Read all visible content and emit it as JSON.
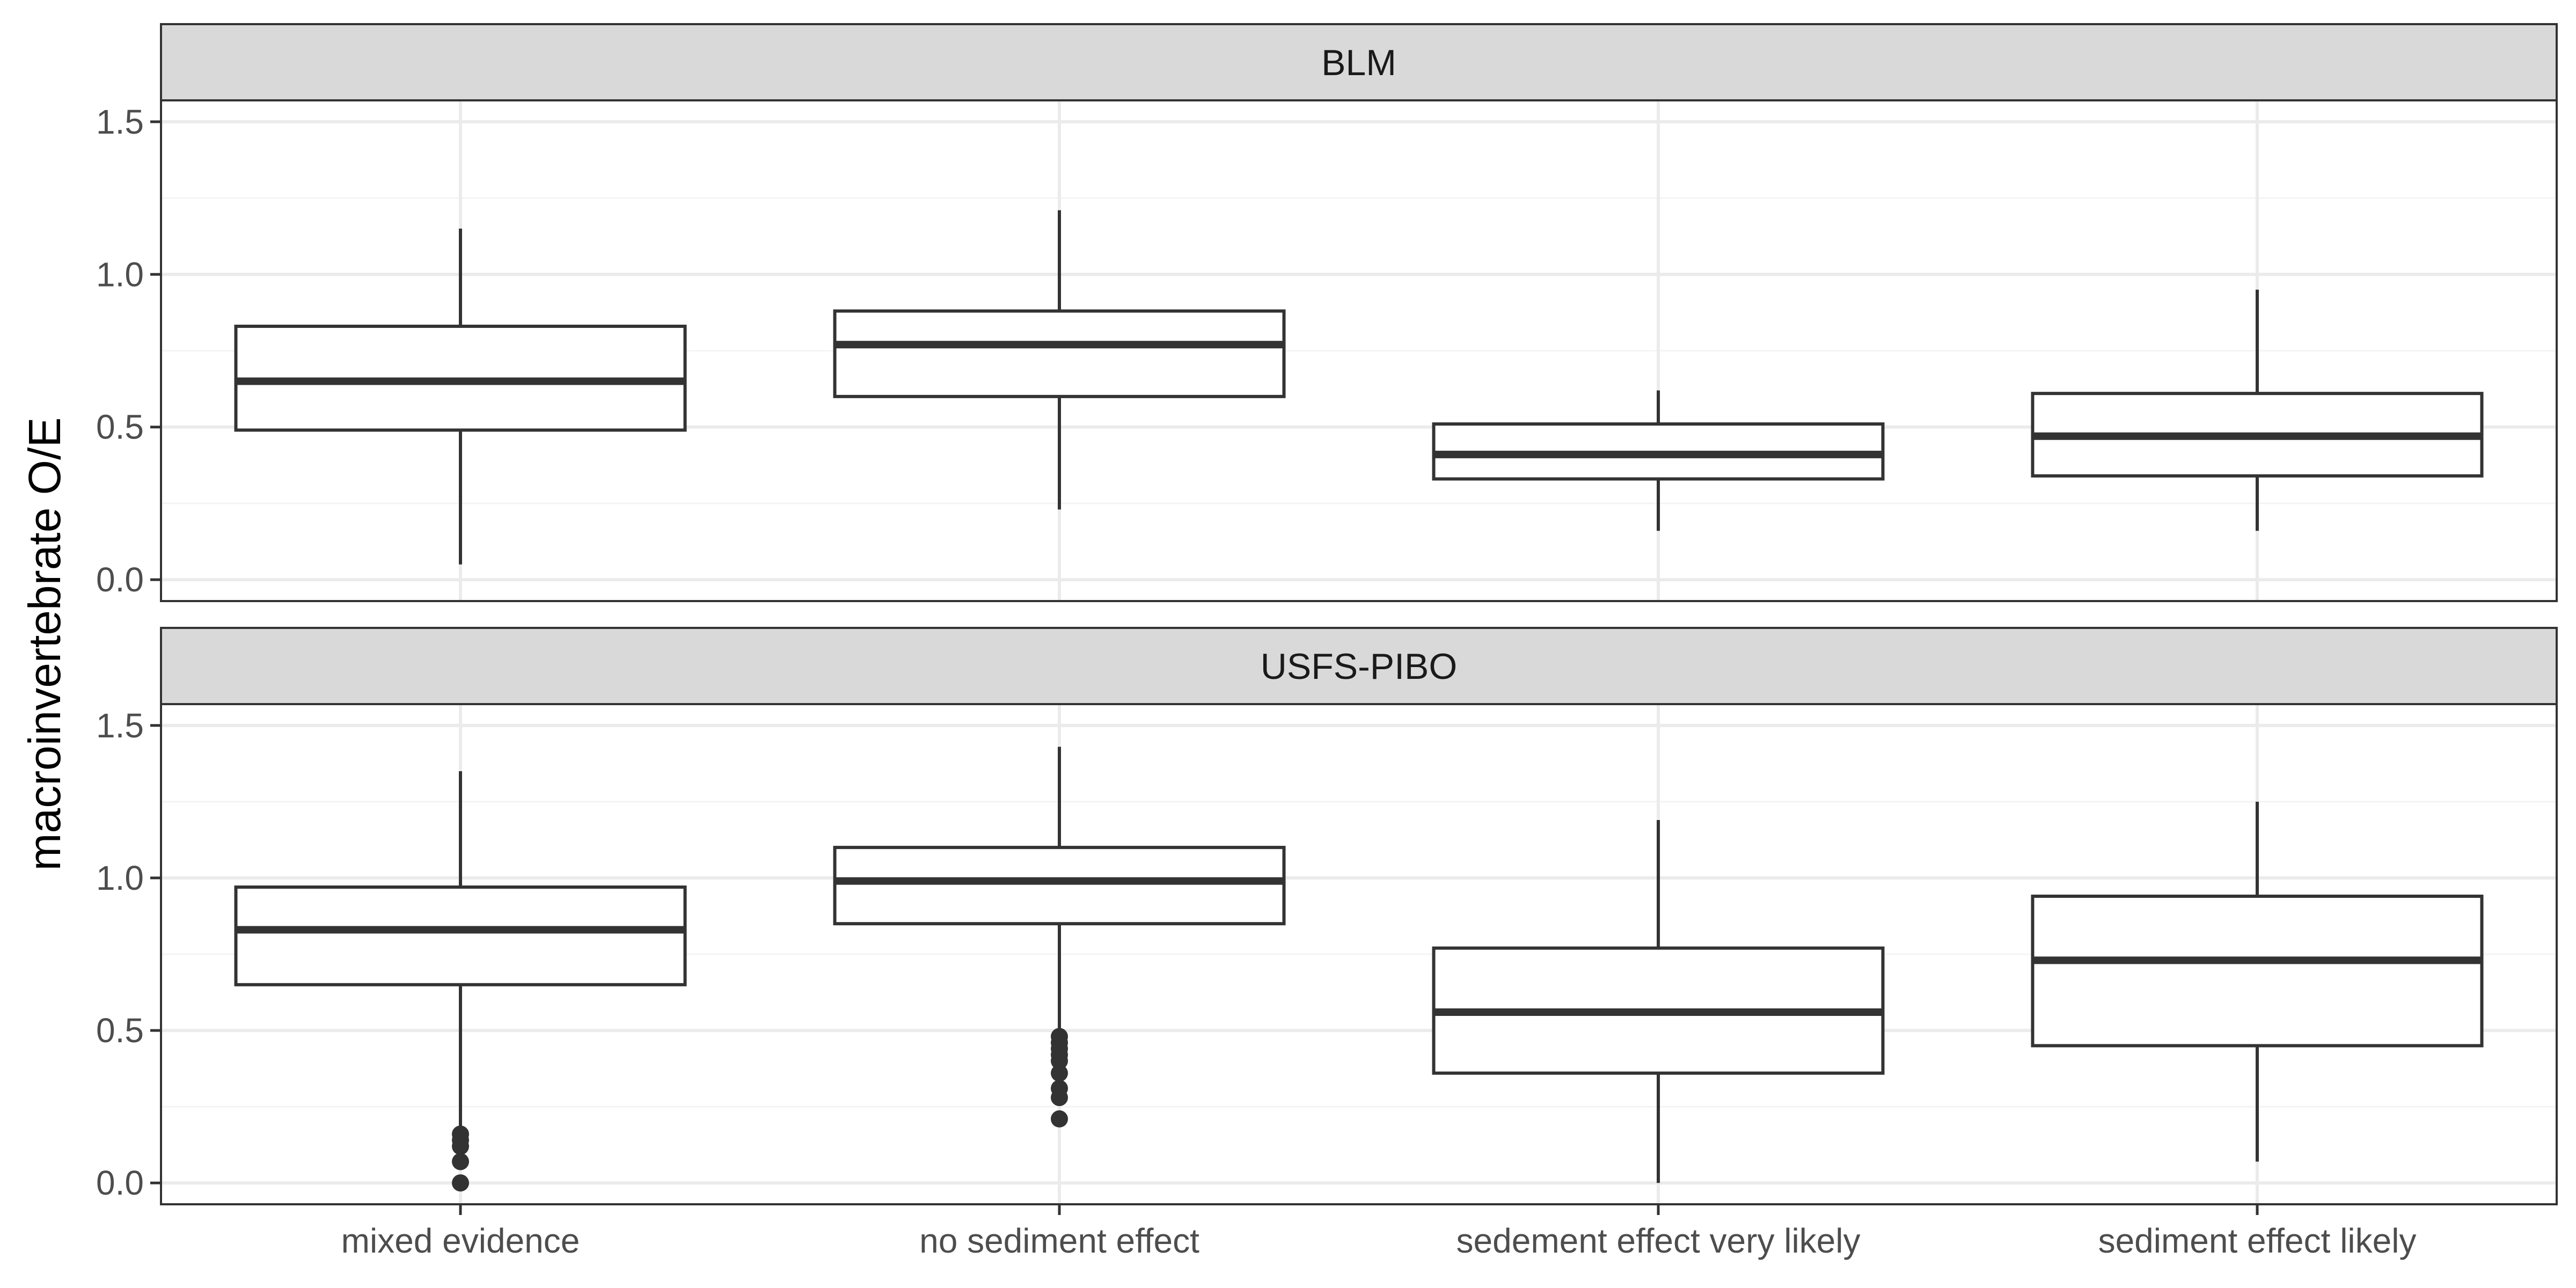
{
  "chart_data": {
    "type": "boxplot",
    "ylabel": "macroinvertebrate O/E",
    "xlabel": "",
    "ylim": [
      -0.07,
      1.57
    ],
    "y_ticks": [
      0.0,
      0.5,
      1.0,
      1.5
    ],
    "y_tick_labels": [
      "0.0",
      "0.5",
      "1.0",
      "1.5"
    ],
    "categories": [
      "mixed evidence",
      "no sediment effect",
      "sedement effect very likely",
      "sediment effect likely"
    ],
    "grid": true,
    "panels": [
      {
        "name": "BLM",
        "boxes": [
          {
            "category": "mixed evidence",
            "whisker_low": 0.05,
            "q1": 0.49,
            "median": 0.65,
            "q3": 0.83,
            "whisker_high": 1.15,
            "outliers": []
          },
          {
            "category": "no sediment effect",
            "whisker_low": 0.23,
            "q1": 0.6,
            "median": 0.77,
            "q3": 0.88,
            "whisker_high": 1.21,
            "outliers": []
          },
          {
            "category": "sedement effect very likely",
            "whisker_low": 0.16,
            "q1": 0.33,
            "median": 0.41,
            "q3": 0.51,
            "whisker_high": 0.62,
            "outliers": []
          },
          {
            "category": "sediment effect likely",
            "whisker_low": 0.16,
            "q1": 0.34,
            "median": 0.47,
            "q3": 0.61,
            "whisker_high": 0.95,
            "outliers": []
          }
        ]
      },
      {
        "name": "USFS-PIBO",
        "boxes": [
          {
            "category": "mixed evidence",
            "whisker_low": 0.17,
            "q1": 0.65,
            "median": 0.83,
            "q3": 0.97,
            "whisker_high": 1.35,
            "outliers": [
              0.16,
              0.14,
              0.12,
              0.07,
              0.0
            ]
          },
          {
            "category": "no sediment effect",
            "whisker_low": 0.49,
            "q1": 0.85,
            "median": 0.99,
            "q3": 1.1,
            "whisker_high": 1.43,
            "outliers": [
              0.48,
              0.46,
              0.44,
              0.42,
              0.4,
              0.36,
              0.31,
              0.28,
              0.21
            ]
          },
          {
            "category": "sedement effect very likely",
            "whisker_low": 0.0,
            "q1": 0.36,
            "median": 0.56,
            "q3": 0.77,
            "whisker_high": 1.19,
            "outliers": []
          },
          {
            "category": "sediment effect likely",
            "whisker_low": 0.07,
            "q1": 0.45,
            "median": 0.73,
            "q3": 0.94,
            "whisker_high": 1.25,
            "outliers": []
          }
        ]
      }
    ],
    "colors": {
      "panel_border": "#333333",
      "strip_fill": "#d9d9d9",
      "box_fill": "#ffffff",
      "box_line": "#333333",
      "grid_major": "#ebebeb",
      "grid_minor": "#f4f4f4",
      "tick_text": "#4d4d4d"
    }
  }
}
